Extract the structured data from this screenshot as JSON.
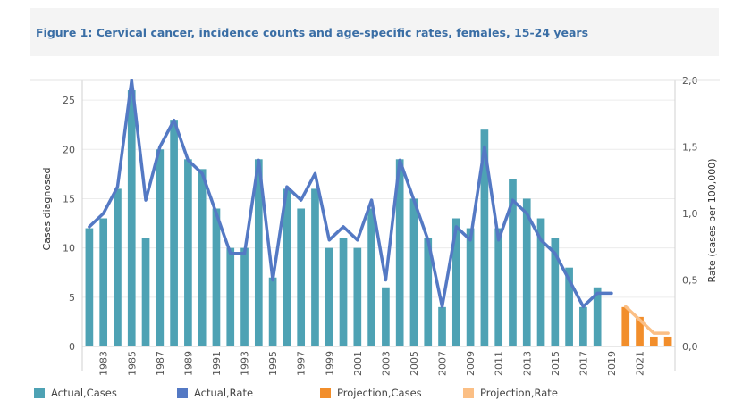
{
  "title": "Figure 1: Cervical cancer, incidence counts and age-specific rates, females, 15-24 years",
  "colors": {
    "actual_cases": "#4ea2b4",
    "actual_rate": "#5479c4",
    "projection_cases": "#f28e2b",
    "projection_rate": "#fbbf85"
  },
  "legend": [
    {
      "key": "actual_cases",
      "label": "Actual,Cases"
    },
    {
      "key": "actual_rate",
      "label": "Actual,Rate"
    },
    {
      "key": "projection_cases",
      "label": "Projection,Cases"
    },
    {
      "key": "projection_rate",
      "label": "Projection,Rate"
    }
  ],
  "chart_data": {
    "type": "bar",
    "title": "Figure 1: Cervical cancer, incidence counts and age-specific rates, females, 15-24 years",
    "xlabel": "",
    "ylabel": "Cases diagnosed",
    "y2label": "Rate (cases per 100,000)",
    "ylim": [
      0,
      27
    ],
    "y2lim": [
      0,
      2.0
    ],
    "yticks": [
      "0",
      "5",
      "10",
      "15",
      "20",
      "25"
    ],
    "y2ticks": [
      "0,0",
      "0,5",
      "1,0",
      "1,5",
      "2,0"
    ],
    "x": [
      1982,
      1983,
      1984,
      1985,
      1986,
      1987,
      1988,
      1989,
      1990,
      1991,
      1992,
      1993,
      1994,
      1995,
      1996,
      1997,
      1998,
      1999,
      2000,
      2001,
      2002,
      2003,
      2004,
      2005,
      2006,
      2007,
      2008,
      2009,
      2010,
      2011,
      2012,
      2013,
      2014,
      2015,
      2016,
      2017,
      2018,
      2019,
      2020,
      2021,
      2022,
      2023
    ],
    "xtick_labels": [
      "1983",
      "1985",
      "1987",
      "1989",
      "1991",
      "1993",
      "1995",
      "1997",
      "1999",
      "2001",
      "2003",
      "2005",
      "2007",
      "2009",
      "2011",
      "2013",
      "2015",
      "2017",
      "2019",
      "2021"
    ],
    "series": [
      {
        "name": "Actual,Cases",
        "kind": "bar",
        "axis": "left",
        "x": [
          1982,
          1983,
          1984,
          1985,
          1986,
          1987,
          1988,
          1989,
          1990,
          1991,
          1992,
          1993,
          1994,
          1995,
          1996,
          1997,
          1998,
          1999,
          2000,
          2001,
          2002,
          2003,
          2004,
          2005,
          2006,
          2007,
          2008,
          2009,
          2010,
          2011,
          2012,
          2013,
          2014,
          2015,
          2016,
          2017,
          2018,
          2019
        ],
        "values": [
          12,
          13,
          16,
          26,
          11,
          20,
          23,
          19,
          18,
          14,
          10,
          10,
          19,
          7,
          16,
          14,
          16,
          10,
          11,
          10,
          14,
          6,
          19,
          15,
          11,
          4,
          13,
          12,
          22,
          12,
          17,
          15,
          13,
          11,
          8,
          4,
          6,
          0
        ]
      },
      {
        "name": "Projection,Cases",
        "kind": "bar",
        "axis": "left",
        "x": [
          2020,
          2021,
          2022,
          2023
        ],
        "values": [
          4,
          3,
          1,
          1
        ]
      },
      {
        "name": "Actual,Rate",
        "kind": "line",
        "axis": "right",
        "x": [
          1982,
          1983,
          1984,
          1985,
          1986,
          1987,
          1988,
          1989,
          1990,
          1991,
          1992,
          1993,
          1994,
          1995,
          1996,
          1997,
          1998,
          1999,
          2000,
          2001,
          2002,
          2003,
          2004,
          2005,
          2006,
          2007,
          2008,
          2009,
          2010,
          2011,
          2012,
          2013,
          2014,
          2015,
          2016,
          2017,
          2018,
          2019
        ],
        "values": [
          0.9,
          1.0,
          1.2,
          2.0,
          1.1,
          1.5,
          1.7,
          1.4,
          1.3,
          1.0,
          0.7,
          0.7,
          1.4,
          0.5,
          1.2,
          1.1,
          1.3,
          0.8,
          0.9,
          0.8,
          1.1,
          0.5,
          1.4,
          1.1,
          0.8,
          0.3,
          0.9,
          0.8,
          1.5,
          0.8,
          1.1,
          1.0,
          0.8,
          0.7,
          0.5,
          0.3,
          0.4,
          0.4
        ]
      },
      {
        "name": "Projection,Rate",
        "kind": "line",
        "axis": "right",
        "x": [
          2020,
          2021,
          2022,
          2023
        ],
        "values": [
          0.3,
          0.2,
          0.1,
          0.1
        ]
      }
    ]
  }
}
